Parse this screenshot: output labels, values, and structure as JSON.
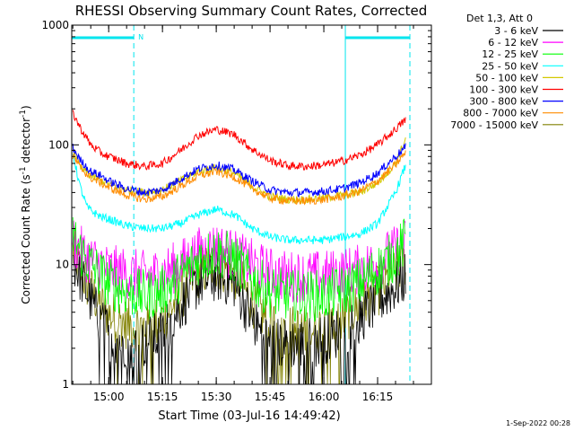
{
  "chart_data": {
    "type": "line",
    "title": "RHESSI Observing Summary Count Rates, Corrected",
    "xlabel": "Start Time (03-Jul-16 14:49:42)",
    "ylabel_prefix": "Corrected Count Rate (s",
    "ylabel_sup1": "-1",
    "ylabel_mid": " detector",
    "ylabel_sup2": "-1",
    "ylabel_suffix": ")",
    "yscale": "log",
    "ylim": [
      1,
      1000
    ],
    "y_ticks": [
      {
        "value": 1,
        "label": "1"
      },
      {
        "value": 10,
        "label": "10"
      },
      {
        "value": 100,
        "label": "100"
      },
      {
        "value": 1000,
        "label": "1000"
      }
    ],
    "xlim": [
      "14:49:42",
      "16:30:00"
    ],
    "x_ticks": [
      {
        "time": "15:00",
        "label": "15:00"
      },
      {
        "time": "15:15",
        "label": "15:15"
      },
      {
        "time": "15:30",
        "label": "15:30"
      },
      {
        "time": "15:45",
        "label": "15:45"
      },
      {
        "time": "16:00",
        "label": "16:00"
      },
      {
        "time": "16:15",
        "label": "16:15"
      }
    ],
    "legend_title": "Det 1,3, Att 0",
    "legend_position": "outside-right",
    "night_markers": [
      "14:49:42",
      "15:07:00",
      "16:06:00",
      "16:24:00"
    ],
    "night_bar_label": "N",
    "series": [
      {
        "name": "3 - 6 keV",
        "color": "#000000",
        "x": [
          "14:50",
          "14:52",
          "14:55",
          "14:58",
          "15:00",
          "15:05",
          "15:10",
          "15:15",
          "15:20",
          "15:25",
          "15:30",
          "15:35",
          "15:40",
          "15:45",
          "15:50",
          "15:55",
          "16:00",
          "16:05",
          "16:10",
          "16:15",
          "16:20",
          "16:23"
        ],
        "values": [
          11,
          8,
          5,
          3.2,
          2.6,
          2.2,
          2.2,
          2.6,
          4.5,
          7,
          8,
          7,
          3.5,
          2.2,
          2.2,
          2.2,
          2.4,
          2.8,
          3.5,
          5,
          6.5,
          8
        ]
      },
      {
        "name": "6 - 12 keV",
        "color": "#ff00ff",
        "x": [
          "14:50",
          "14:52",
          "14:55",
          "14:58",
          "15:00",
          "15:05",
          "15:10",
          "15:15",
          "15:20",
          "15:25",
          "15:30",
          "15:35",
          "15:40",
          "15:45",
          "15:50",
          "15:55",
          "16:00",
          "16:05",
          "16:10",
          "16:15",
          "16:20",
          "16:23"
        ],
        "values": [
          16,
          13,
          11,
          10,
          9,
          8.5,
          8,
          8.5,
          10,
          12.5,
          14,
          12,
          10,
          8.5,
          8,
          8,
          8,
          8.5,
          9,
          10.5,
          13,
          15
        ]
      },
      {
        "name": "12 - 25 keV",
        "color": "#00ff00",
        "x": [
          "14:50",
          "14:52",
          "14:55",
          "14:58",
          "15:00",
          "15:05",
          "15:10",
          "15:15",
          "15:20",
          "15:25",
          "15:30",
          "15:35",
          "15:40",
          "15:45",
          "15:50",
          "15:55",
          "16:00",
          "16:05",
          "16:10",
          "16:15",
          "16:20",
          "16:23"
        ],
        "values": [
          18,
          13,
          10,
          8,
          7,
          6,
          5.5,
          6,
          8,
          11,
          13,
          11,
          7.5,
          6,
          5.5,
          5.5,
          5.5,
          6,
          7,
          9,
          12,
          16
        ]
      },
      {
        "name": "25 - 50 keV",
        "color": "#00ffff",
        "x": [
          "14:50",
          "14:52",
          "14:54",
          "14:56",
          "14:58",
          "15:00",
          "15:05",
          "15:10",
          "15:15",
          "15:20",
          "15:25",
          "15:30",
          "15:35",
          "15:40",
          "15:45",
          "15:50",
          "15:55",
          "16:00",
          "16:05",
          "16:10",
          "16:15",
          "16:20",
          "16:23"
        ],
        "values": [
          85,
          45,
          30,
          27,
          25,
          24,
          21,
          20,
          20,
          22,
          26,
          29,
          26,
          20,
          17,
          16,
          16,
          16,
          17,
          18,
          22,
          40,
          70
        ]
      },
      {
        "name": "50 - 100 keV",
        "color": "#d4c800",
        "x": [
          "14:50",
          "14:52",
          "14:55",
          "14:58",
          "15:00",
          "15:05",
          "15:10",
          "15:15",
          "15:20",
          "15:25",
          "15:30",
          "15:35",
          "15:40",
          "15:45",
          "15:50",
          "15:55",
          "16:00",
          "16:05",
          "16:10",
          "16:15",
          "16:20",
          "16:23"
        ],
        "values": [
          95,
          65,
          55,
          50,
          47,
          42,
          40,
          42,
          50,
          60,
          65,
          58,
          45,
          37,
          35,
          35,
          36,
          38,
          40,
          48,
          70,
          115
        ]
      },
      {
        "name": "100 - 300 keV",
        "color": "#ff0000",
        "x": [
          "14:50",
          "14:52",
          "14:55",
          "14:58",
          "15:00",
          "15:05",
          "15:10",
          "15:15",
          "15:20",
          "15:25",
          "15:30",
          "15:35",
          "15:40",
          "15:45",
          "15:50",
          "15:55",
          "16:00",
          "16:05",
          "16:10",
          "16:15",
          "16:20",
          "16:23"
        ],
        "values": [
          185,
          140,
          100,
          85,
          80,
          70,
          66,
          70,
          90,
          120,
          135,
          122,
          92,
          74,
          67,
          66,
          68,
          73,
          82,
          100,
          135,
          165
        ]
      },
      {
        "name": "300 - 800 keV",
        "color": "#0000ff",
        "x": [
          "14:50",
          "14:52",
          "14:55",
          "14:58",
          "15:00",
          "15:05",
          "15:10",
          "15:15",
          "15:20",
          "15:25",
          "15:30",
          "15:35",
          "15:40",
          "15:45",
          "15:50",
          "15:55",
          "16:00",
          "16:05",
          "16:10",
          "16:15",
          "16:20",
          "16:23"
        ],
        "values": [
          95,
          75,
          60,
          55,
          50,
          43,
          40,
          42,
          52,
          63,
          68,
          62,
          50,
          42,
          40,
          40,
          41,
          43,
          48,
          58,
          80,
          97
        ]
      },
      {
        "name": "800 - 7000 keV",
        "color": "#ff8c00",
        "x": [
          "14:50",
          "14:52",
          "14:55",
          "14:58",
          "15:00",
          "15:05",
          "15:10",
          "15:15",
          "15:20",
          "15:25",
          "15:30",
          "15:35",
          "15:40",
          "15:45",
          "15:50",
          "15:55",
          "16:00",
          "16:05",
          "16:10",
          "16:15",
          "16:20",
          "16:23"
        ],
        "values": [
          80,
          65,
          53,
          48,
          44,
          38,
          35,
          37,
          45,
          55,
          60,
          54,
          43,
          36,
          34,
          34,
          35,
          37,
          41,
          50,
          68,
          88
        ]
      },
      {
        "name": "7000 - 15000 keV",
        "color": "#808000",
        "x": [
          "14:50",
          "14:52",
          "14:55",
          "14:58",
          "15:00",
          "15:05",
          "15:10",
          "15:15",
          "15:20",
          "15:25",
          "15:30",
          "15:35",
          "15:40",
          "15:45",
          "15:50",
          "15:55",
          "16:00",
          "16:05",
          "16:10",
          "16:15",
          "16:20",
          "16:23"
        ],
        "values": [
          13,
          9,
          6,
          4.5,
          3.8,
          3.2,
          3,
          3.5,
          5.5,
          8.5,
          10,
          8.5,
          5,
          3.2,
          2.8,
          2.8,
          3,
          3.5,
          4.5,
          6,
          8.5,
          11
        ]
      }
    ]
  },
  "footer": {
    "timestamp": "1-Sep-2022 00:28"
  }
}
